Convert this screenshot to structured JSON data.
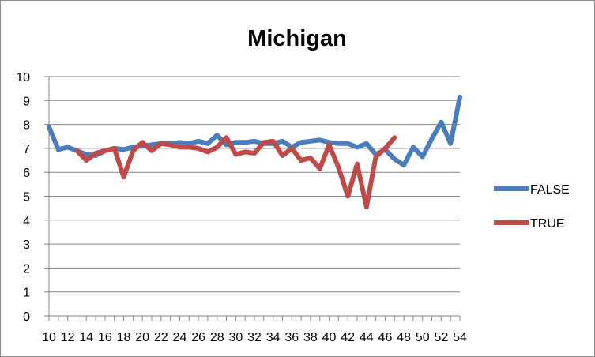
{
  "chart_data": {
    "type": "line",
    "title": "Michigan",
    "xlabel": "",
    "ylabel": "",
    "ylim": [
      0,
      10
    ],
    "y_ticks": [
      0,
      1,
      2,
      3,
      4,
      5,
      6,
      7,
      8,
      9,
      10
    ],
    "x_tick_labels": [
      10,
      12,
      14,
      16,
      18,
      20,
      22,
      24,
      26,
      28,
      30,
      32,
      34,
      36,
      38,
      40,
      42,
      44,
      46,
      48,
      50,
      52,
      54
    ],
    "grid": "horizontal",
    "legend_position": "right",
    "series": [
      {
        "name": "FALSE",
        "color": "#4a7ebb",
        "x": [
          10,
          11,
          12,
          13,
          14,
          15,
          16,
          17,
          18,
          19,
          20,
          21,
          22,
          23,
          24,
          25,
          26,
          27,
          28,
          29,
          30,
          31,
          32,
          33,
          34,
          35,
          36,
          37,
          38,
          39,
          40,
          41,
          42,
          43,
          44,
          45,
          46,
          47,
          48,
          49,
          50,
          51,
          52,
          53,
          54
        ],
        "values": [
          7.9,
          6.95,
          7.05,
          6.9,
          6.75,
          6.7,
          6.9,
          7.0,
          6.95,
          7.05,
          7.1,
          7.15,
          7.2,
          7.2,
          7.25,
          7.2,
          7.3,
          7.2,
          7.55,
          7.15,
          7.25,
          7.25,
          7.3,
          7.2,
          7.2,
          7.3,
          7.05,
          7.25,
          7.3,
          7.35,
          7.25,
          7.2,
          7.2,
          7.05,
          7.2,
          6.75,
          6.95,
          6.55,
          6.3,
          7.05,
          6.65,
          7.4,
          8.1,
          7.2,
          9.15
        ]
      },
      {
        "name": "TRUE",
        "color": "#be4b48",
        "x": [
          13,
          14,
          15,
          16,
          17,
          18,
          19,
          20,
          21,
          22,
          23,
          24,
          25,
          26,
          27,
          28,
          29,
          30,
          31,
          32,
          33,
          34,
          35,
          36,
          37,
          38,
          39,
          40,
          41,
          42,
          43,
          44,
          45,
          46,
          47
        ],
        "values": [
          6.9,
          6.5,
          6.8,
          6.9,
          7.0,
          5.8,
          6.9,
          7.25,
          6.9,
          7.2,
          7.15,
          7.05,
          7.05,
          7.0,
          6.85,
          7.05,
          7.45,
          6.75,
          6.85,
          6.8,
          7.25,
          7.3,
          6.7,
          7.0,
          6.5,
          6.6,
          6.15,
          7.15,
          6.2,
          5.0,
          6.35,
          4.55,
          6.65,
          7.0,
          7.45
        ]
      }
    ]
  }
}
